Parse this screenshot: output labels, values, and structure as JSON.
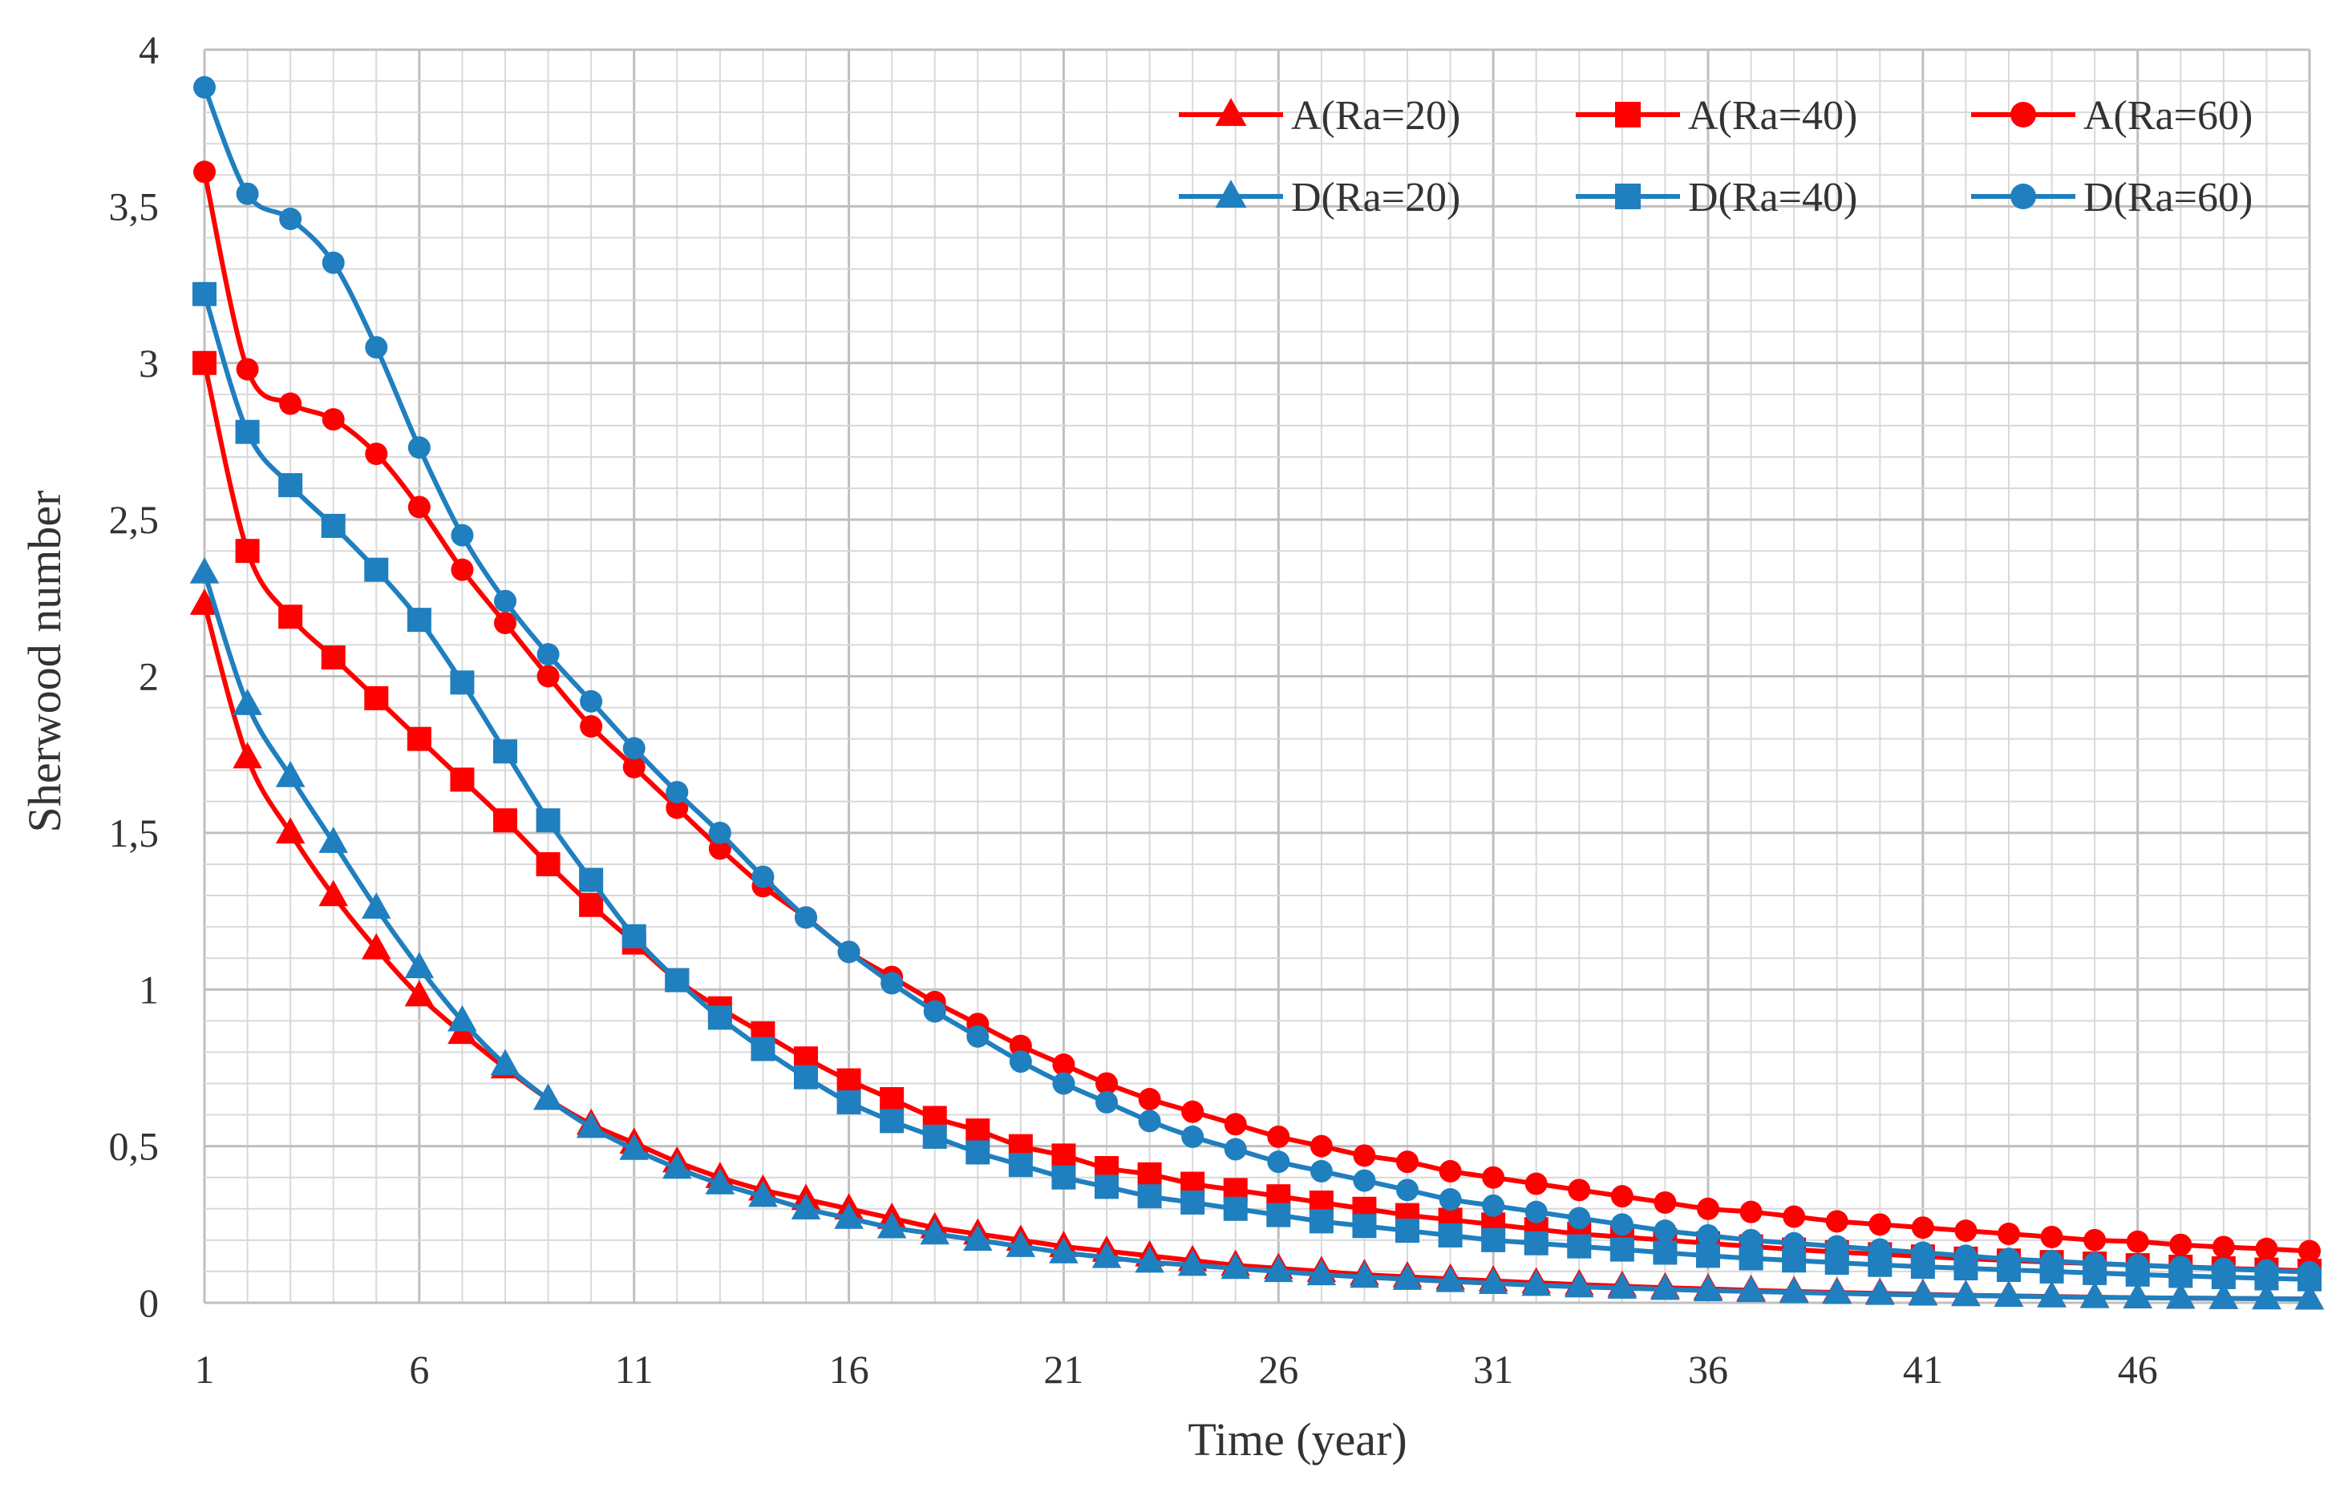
{
  "chart_data": {
    "type": "line",
    "xlabel": "Time (year)",
    "ylabel": "Sherwood number",
    "xlim": [
      1,
      50
    ],
    "ylim": [
      0,
      4
    ],
    "x_ticks": [
      "1",
      "6",
      "11",
      "16",
      "21",
      "26",
      "31",
      "36",
      "41",
      "46"
    ],
    "y_ticks": [
      "0",
      "0,5",
      "1",
      "1,5",
      "2",
      "2,5",
      "3",
      "3,5",
      "4"
    ],
    "grid": true,
    "legend_position": "top-right",
    "x": [
      1,
      2,
      3,
      4,
      5,
      6,
      7,
      8,
      9,
      10,
      11,
      12,
      13,
      14,
      15,
      16,
      17,
      18,
      19,
      20,
      21,
      22,
      23,
      24,
      25,
      26,
      27,
      28,
      29,
      30,
      31,
      32,
      33,
      34,
      35,
      36,
      37,
      38,
      39,
      40,
      41,
      42,
      43,
      44,
      45,
      46,
      47,
      48,
      49,
      50
    ],
    "series": [
      {
        "name": "A(Ra=20)",
        "color": "#ff0000",
        "marker": "triangle",
        "values": [
          2.23,
          1.74,
          1.5,
          1.3,
          1.13,
          0.98,
          0.86,
          0.75,
          0.65,
          0.57,
          0.51,
          0.45,
          0.4,
          0.36,
          0.33,
          0.3,
          0.27,
          0.24,
          0.22,
          0.2,
          0.18,
          0.165,
          0.15,
          0.135,
          0.12,
          0.11,
          0.1,
          0.09,
          0.083,
          0.076,
          0.07,
          0.064,
          0.058,
          0.053,
          0.048,
          0.044,
          0.04,
          0.036,
          0.033,
          0.03,
          0.027,
          0.024,
          0.022,
          0.02,
          0.018,
          0.016,
          0.015,
          0.014,
          0.013,
          0.012
        ]
      },
      {
        "name": "A(Ra=40)",
        "color": "#ff0000",
        "marker": "square",
        "values": [
          3.0,
          2.4,
          2.19,
          2.06,
          1.93,
          1.8,
          1.67,
          1.54,
          1.4,
          1.27,
          1.15,
          1.03,
          0.94,
          0.86,
          0.78,
          0.71,
          0.65,
          0.59,
          0.55,
          0.5,
          0.47,
          0.43,
          0.41,
          0.38,
          0.36,
          0.34,
          0.32,
          0.3,
          0.28,
          0.265,
          0.25,
          0.235,
          0.22,
          0.21,
          0.2,
          0.19,
          0.18,
          0.17,
          0.162,
          0.155,
          0.148,
          0.141,
          0.135,
          0.13,
          0.125,
          0.12,
          0.115,
          0.11,
          0.106,
          0.102
        ]
      },
      {
        "name": "A(Ra=60)",
        "color": "#ff0000",
        "marker": "circle",
        "values": [
          3.61,
          2.98,
          2.87,
          2.82,
          2.71,
          2.54,
          2.34,
          2.17,
          2.0,
          1.84,
          1.71,
          1.58,
          1.45,
          1.33,
          1.23,
          1.12,
          1.04,
          0.96,
          0.89,
          0.82,
          0.76,
          0.7,
          0.65,
          0.61,
          0.57,
          0.53,
          0.5,
          0.47,
          0.45,
          0.42,
          0.4,
          0.38,
          0.36,
          0.34,
          0.32,
          0.3,
          0.29,
          0.275,
          0.26,
          0.25,
          0.24,
          0.23,
          0.22,
          0.21,
          0.2,
          0.195,
          0.185,
          0.178,
          0.172,
          0.165
        ]
      },
      {
        "name": "D(Ra=20)",
        "color": "#1f7fbf",
        "marker": "triangle",
        "values": [
          2.33,
          1.91,
          1.68,
          1.47,
          1.26,
          1.07,
          0.9,
          0.76,
          0.65,
          0.56,
          0.49,
          0.43,
          0.38,
          0.34,
          0.3,
          0.27,
          0.24,
          0.22,
          0.2,
          0.18,
          0.16,
          0.145,
          0.13,
          0.12,
          0.11,
          0.1,
          0.09,
          0.082,
          0.075,
          0.068,
          0.062,
          0.056,
          0.051,
          0.047,
          0.043,
          0.039,
          0.036,
          0.033,
          0.03,
          0.027,
          0.025,
          0.023,
          0.021,
          0.019,
          0.017,
          0.016,
          0.015,
          0.014,
          0.013,
          0.012
        ]
      },
      {
        "name": "D(Ra=40)",
        "color": "#1f7fbf",
        "marker": "square",
        "values": [
          3.22,
          2.78,
          2.61,
          2.48,
          2.34,
          2.18,
          1.98,
          1.76,
          1.54,
          1.35,
          1.17,
          1.03,
          0.91,
          0.81,
          0.72,
          0.64,
          0.58,
          0.53,
          0.48,
          0.44,
          0.4,
          0.37,
          0.34,
          0.32,
          0.3,
          0.28,
          0.26,
          0.245,
          0.23,
          0.215,
          0.2,
          0.19,
          0.18,
          0.17,
          0.16,
          0.15,
          0.142,
          0.135,
          0.128,
          0.121,
          0.115,
          0.11,
          0.105,
          0.1,
          0.095,
          0.09,
          0.086,
          0.082,
          0.078,
          0.075
        ]
      },
      {
        "name": "D(Ra=60)",
        "color": "#1f7fbf",
        "marker": "circle",
        "values": [
          3.88,
          3.54,
          3.46,
          3.32,
          3.05,
          2.73,
          2.45,
          2.24,
          2.07,
          1.92,
          1.77,
          1.63,
          1.5,
          1.36,
          1.23,
          1.12,
          1.02,
          0.93,
          0.85,
          0.77,
          0.7,
          0.64,
          0.58,
          0.53,
          0.49,
          0.45,
          0.42,
          0.39,
          0.36,
          0.33,
          0.31,
          0.29,
          0.27,
          0.25,
          0.23,
          0.215,
          0.2,
          0.19,
          0.18,
          0.17,
          0.16,
          0.15,
          0.14,
          0.133,
          0.126,
          0.12,
          0.114,
          0.108,
          0.103,
          0.098
        ]
      }
    ]
  }
}
